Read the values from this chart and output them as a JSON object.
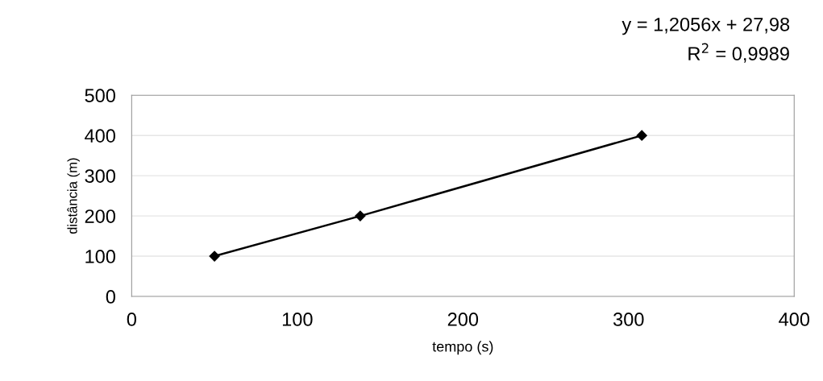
{
  "chart_data": {
    "type": "line",
    "xlabel": "tempo (s)",
    "ylabel": "distância (m)",
    "x": [
      50,
      138,
      308
    ],
    "series": [
      {
        "color": "#000000",
        "values": [
          100,
          200,
          400
        ]
      }
    ],
    "marker": "diamond",
    "line_style": "solid",
    "grid": "y",
    "xlim": [
      0,
      400
    ],
    "xticks": [
      0,
      100,
      200,
      300,
      400
    ],
    "ylim": [
      0,
      500
    ],
    "yticks": [
      0,
      100,
      200,
      300,
      400,
      500
    ],
    "annotations": [
      "y = 1,2056x + 27,98",
      "R$^{2}$ = 0,9989"
    ]
  }
}
